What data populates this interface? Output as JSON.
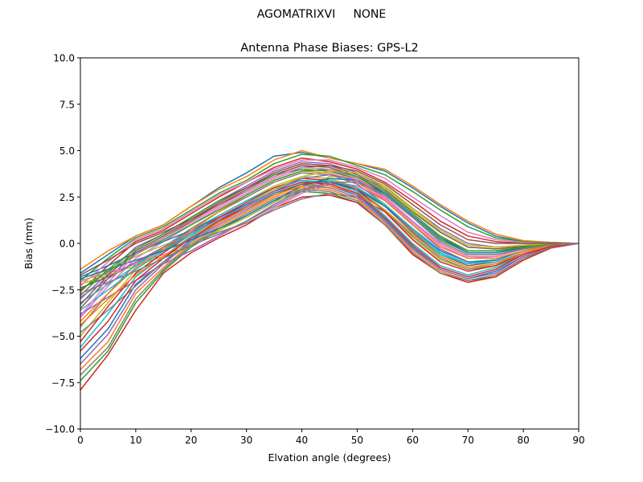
{
  "figure": {
    "suptitle": "AGOMATRIXVI     NONE"
  },
  "chart_data": {
    "type": "line",
    "title": "Antenna Phase Biases: GPS-L2",
    "xlabel": "Elvation angle (degrees)",
    "ylabel": "Bias (mm)",
    "xlim": [
      0,
      90
    ],
    "ylim": [
      -10,
      10
    ],
    "x_ticks": [
      "0",
      "10",
      "20",
      "30",
      "40",
      "50",
      "60",
      "70",
      "80",
      "90"
    ],
    "y_ticks": [
      "−10.0",
      "−7.5",
      "−5.0",
      "−2.5",
      "0.0",
      "2.5",
      "5.0",
      "7.5",
      "10.0"
    ],
    "grid": false,
    "legend": "none",
    "x": [
      0,
      5,
      10,
      15,
      20,
      25,
      30,
      35,
      40,
      45,
      50,
      55,
      60,
      65,
      70,
      75,
      80,
      85,
      90
    ],
    "colors": [
      "#1f77b4",
      "#ff7f0e",
      "#2ca02c",
      "#d62728",
      "#9467bd",
      "#8c564b",
      "#e377c2",
      "#7f7f7f",
      "#bcbd22",
      "#17becf"
    ],
    "series": [
      {
        "values": [
          -1.6,
          -0.6,
          0.4,
          1.0,
          2.0,
          3.0,
          3.8,
          4.7,
          4.9,
          4.6,
          4.3,
          3.9,
          3.0,
          2.0,
          1.1,
          0.4,
          0.1,
          0.05,
          0
        ]
      },
      {
        "values": [
          -1.4,
          -0.4,
          0.4,
          1.0,
          2.0,
          2.9,
          3.6,
          4.5,
          5.0,
          4.6,
          4.3,
          4.0,
          3.1,
          2.1,
          1.2,
          0.5,
          0.15,
          0.05,
          0
        ]
      },
      {
        "values": [
          -2.0,
          -0.8,
          0.3,
          0.9,
          1.8,
          2.7,
          3.4,
          4.3,
          4.8,
          4.7,
          4.2,
          3.7,
          2.8,
          1.8,
          0.9,
          0.3,
          0.1,
          0.03,
          0
        ]
      },
      {
        "values": [
          -2.6,
          -1.2,
          0.1,
          0.7,
          1.6,
          2.5,
          3.3,
          4.1,
          4.6,
          4.4,
          4.0,
          3.3,
          2.3,
          1.2,
          0.4,
          0.1,
          0.0,
          0.0,
          0
        ]
      },
      {
        "values": [
          -3.0,
          -1.6,
          -0.2,
          0.5,
          1.4,
          2.3,
          3.1,
          3.9,
          4.4,
          4.3,
          3.8,
          3.0,
          1.9,
          0.8,
          0.0,
          -0.2,
          -0.1,
          -0.03,
          0
        ]
      },
      {
        "values": [
          -3.5,
          -1.9,
          -0.5,
          0.3,
          1.2,
          2.1,
          2.9,
          3.7,
          4.2,
          4.1,
          3.6,
          2.7,
          1.5,
          0.3,
          -0.4,
          -0.4,
          -0.2,
          -0.05,
          0
        ]
      },
      {
        "values": [
          -4.0,
          -2.3,
          -0.8,
          0.1,
          1.0,
          1.9,
          2.7,
          3.5,
          4.0,
          3.9,
          3.4,
          2.4,
          1.1,
          -0.1,
          -0.8,
          -0.7,
          -0.3,
          -0.08,
          0
        ]
      },
      {
        "values": [
          -4.5,
          -2.7,
          -1.1,
          -0.2,
          0.8,
          1.7,
          2.5,
          3.3,
          3.8,
          3.7,
          3.2,
          2.1,
          0.7,
          -0.5,
          -1.1,
          -0.9,
          -0.4,
          -0.1,
          0
        ]
      },
      {
        "values": [
          -5.0,
          -3.2,
          -1.4,
          -0.4,
          0.6,
          1.5,
          2.3,
          3.1,
          3.6,
          3.5,
          3.0,
          1.8,
          0.3,
          -0.9,
          -1.4,
          -1.1,
          -0.5,
          -0.12,
          0
        ]
      },
      {
        "values": [
          -5.6,
          -3.8,
          -1.8,
          -0.7,
          0.4,
          1.3,
          2.1,
          2.9,
          3.4,
          3.3,
          2.8,
          1.5,
          0.0,
          -1.2,
          -1.7,
          -1.3,
          -0.6,
          -0.15,
          0
        ]
      },
      {
        "values": [
          -6.2,
          -4.6,
          -2.2,
          -1.0,
          0.2,
          1.1,
          1.9,
          2.7,
          3.2,
          3.1,
          2.6,
          1.3,
          -0.2,
          -1.4,
          -1.9,
          -1.5,
          -0.7,
          -0.18,
          0
        ]
      },
      {
        "values": [
          -6.8,
          -5.3,
          -2.7,
          -1.3,
          0.0,
          0.9,
          1.7,
          2.5,
          3.0,
          2.9,
          2.4,
          1.1,
          -0.4,
          -1.5,
          -2.0,
          -1.7,
          -0.8,
          -0.2,
          0
        ]
      },
      {
        "values": [
          -7.4,
          -5.8,
          -3.2,
          -1.5,
          -0.2,
          0.7,
          1.5,
          2.3,
          2.8,
          2.7,
          2.2,
          1.0,
          -0.5,
          -1.6,
          -2.0,
          -1.8,
          -0.9,
          -0.22,
          0
        ]
      },
      {
        "values": [
          -7.9,
          -6.0,
          -3.6,
          -1.6,
          -0.5,
          0.3,
          1.0,
          1.9,
          2.5,
          2.6,
          2.2,
          1.0,
          -0.6,
          -1.6,
          -2.1,
          -1.8,
          -0.9,
          -0.25,
          0
        ]
      },
      {
        "values": [
          -3.8,
          -2.9,
          -2.0,
          -1.1,
          -0.4,
          0.4,
          1.2,
          2.1,
          2.9,
          3.3,
          3.1,
          2.3,
          1.0,
          -0.3,
          -1.0,
          -0.9,
          -0.4,
          -0.1,
          0
        ]
      },
      {
        "values": [
          -2.4,
          -1.8,
          -1.0,
          -0.3,
          0.5,
          1.2,
          1.9,
          2.6,
          3.2,
          3.4,
          3.0,
          2.0,
          0.6,
          -0.6,
          -1.2,
          -1.0,
          -0.5,
          -0.12,
          0
        ]
      },
      {
        "values": [
          -2.0,
          -1.6,
          -1.1,
          -0.6,
          -0.1,
          0.5,
          1.1,
          1.9,
          2.7,
          3.2,
          3.1,
          2.4,
          1.2,
          0.0,
          -0.7,
          -0.7,
          -0.3,
          -0.08,
          0
        ]
      },
      {
        "values": [
          -4.8,
          -3.6,
          -2.3,
          -1.0,
          0.0,
          0.6,
          1.1,
          1.8,
          2.4,
          2.7,
          2.5,
          1.7,
          0.4,
          -0.8,
          -1.4,
          -1.2,
          -0.6,
          -0.15,
          0
        ]
      },
      {
        "values": [
          -2.2,
          -1.7,
          -1.2,
          -0.7,
          0.0,
          0.7,
          1.4,
          2.2,
          3.0,
          3.6,
          3.6,
          3.0,
          1.8,
          0.6,
          -0.2,
          -0.3,
          -0.15,
          -0.04,
          0
        ]
      },
      {
        "values": [
          -3.2,
          -2.2,
          -1.2,
          -0.2,
          0.7,
          1.5,
          2.3,
          3.0,
          3.4,
          3.3,
          2.8,
          1.8,
          0.5,
          -0.6,
          -1.1,
          -0.9,
          -0.4,
          -0.1,
          0
        ]
      },
      {
        "values": [
          -1.8,
          -1.2,
          -0.5,
          0.1,
          0.7,
          1.4,
          2.1,
          2.8,
          3.3,
          3.3,
          2.9,
          2.0,
          0.8,
          -0.4,
          -1.0,
          -0.9,
          -0.4,
          -0.1,
          0
        ]
      },
      {
        "values": [
          -4.2,
          -2.7,
          -1.3,
          -0.3,
          0.7,
          1.7,
          2.6,
          3.4,
          3.9,
          3.8,
          3.3,
          2.3,
          1.0,
          -0.2,
          -0.8,
          -0.8,
          -0.4,
          -0.1,
          0
        ]
      },
      {
        "values": [
          -2.8,
          -1.4,
          -0.3,
          0.5,
          1.4,
          2.3,
          3.0,
          3.7,
          4.0,
          3.9,
          3.5,
          2.6,
          1.4,
          0.2,
          -0.5,
          -0.5,
          -0.2,
          -0.06,
          0
        ]
      },
      {
        "values": [
          -5.3,
          -3.4,
          -1.6,
          -0.5,
          0.5,
          1.4,
          2.2,
          3.0,
          3.5,
          3.4,
          2.9,
          1.7,
          0.2,
          -1.0,
          -1.5,
          -1.2,
          -0.5,
          -0.13,
          0
        ]
      },
      {
        "values": [
          -6.5,
          -4.9,
          -2.5,
          -1.1,
          0.1,
          1.0,
          1.8,
          2.6,
          3.1,
          3.0,
          2.5,
          1.2,
          -0.3,
          -1.4,
          -1.9,
          -1.6,
          -0.7,
          -0.19,
          0
        ]
      },
      {
        "values": [
          -3.3,
          -1.7,
          -0.4,
          0.4,
          1.3,
          2.2,
          3.0,
          3.8,
          4.3,
          4.2,
          3.7,
          2.9,
          1.7,
          0.6,
          -0.2,
          -0.3,
          -0.15,
          -0.04,
          0
        ]
      },
      {
        "values": [
          -2.3,
          -1.0,
          0.2,
          0.8,
          1.7,
          2.6,
          3.3,
          4.0,
          4.5,
          4.5,
          4.1,
          3.5,
          2.5,
          1.5,
          0.6,
          0.2,
          0.05,
          0.01,
          0
        ]
      },
      {
        "values": [
          -7.1,
          -5.6,
          -3.0,
          -1.4,
          -0.1,
          0.8,
          1.6,
          2.4,
          2.9,
          2.8,
          2.3,
          1.0,
          -0.5,
          -1.6,
          -2.0,
          -1.7,
          -0.8,
          -0.21,
          0
        ]
      },
      {
        "values": [
          -2.1,
          -1.4,
          -0.7,
          -0.1,
          0.5,
          1.2,
          2.0,
          2.9,
          3.6,
          3.9,
          3.8,
          3.1,
          1.9,
          0.7,
          -0.1,
          -0.2,
          -0.1,
          -0.03,
          0
        ]
      },
      {
        "values": [
          -3.6,
          -2.5,
          -1.4,
          -0.4,
          0.5,
          1.3,
          2.0,
          2.8,
          3.3,
          3.4,
          3.0,
          2.1,
          0.8,
          -0.5,
          -1.1,
          -1.0,
          -0.5,
          -0.12,
          0
        ]
      },
      {
        "values": [
          -1.9,
          -1.4,
          -0.9,
          -0.4,
          0.2,
          0.8,
          1.5,
          2.3,
          3.1,
          3.5,
          3.4,
          2.7,
          1.5,
          0.3,
          -0.5,
          -0.5,
          -0.25,
          -0.06,
          0
        ]
      },
      {
        "values": [
          -4.4,
          -3.0,
          -1.7,
          -0.7,
          0.3,
          1.1,
          1.9,
          2.6,
          3.1,
          3.1,
          2.7,
          1.8,
          0.5,
          -0.7,
          -1.3,
          -1.1,
          -0.5,
          -0.13,
          0
        ]
      },
      {
        "values": [
          -2.5,
          -1.5,
          -0.6,
          0.2,
          1.0,
          1.8,
          2.6,
          3.4,
          3.9,
          4.0,
          3.6,
          2.8,
          1.6,
          0.4,
          -0.4,
          -0.4,
          -0.2,
          -0.05,
          0
        ]
      },
      {
        "values": [
          -5.8,
          -4.2,
          -2.0,
          -0.8,
          0.3,
          1.2,
          2.0,
          2.8,
          3.3,
          3.2,
          2.7,
          1.4,
          -0.1,
          -1.3,
          -1.8,
          -1.4,
          -0.6,
          -0.16,
          0
        ]
      },
      {
        "values": [
          -2.9,
          -1.9,
          -1.0,
          -0.2,
          0.6,
          1.3,
          2.0,
          2.8,
          3.5,
          3.7,
          3.4,
          2.5,
          1.2,
          0.0,
          -0.7,
          -0.7,
          -0.3,
          -0.08,
          0
        ]
      },
      {
        "values": [
          -1.7,
          -0.9,
          0.0,
          0.6,
          1.3,
          2.1,
          2.8,
          3.6,
          4.1,
          4.2,
          3.9,
          3.2,
          2.1,
          1.0,
          0.2,
          0.0,
          0.0,
          0.0,
          0
        ]
      },
      {
        "values": [
          -3.9,
          -2.1,
          -0.6,
          0.3,
          1.1,
          2.0,
          2.8,
          3.6,
          4.1,
          4.0,
          3.5,
          2.5,
          1.2,
          0.0,
          -0.7,
          -0.7,
          -0.3,
          -0.08,
          0
        ]
      },
      {
        "values": [
          -2.7,
          -2.1,
          -1.5,
          -0.8,
          -0.1,
          0.5,
          1.2,
          2.0,
          2.8,
          3.3,
          3.3,
          2.6,
          1.4,
          0.1,
          -0.6,
          -0.6,
          -0.3,
          -0.07,
          0
        ]
      }
    ]
  }
}
